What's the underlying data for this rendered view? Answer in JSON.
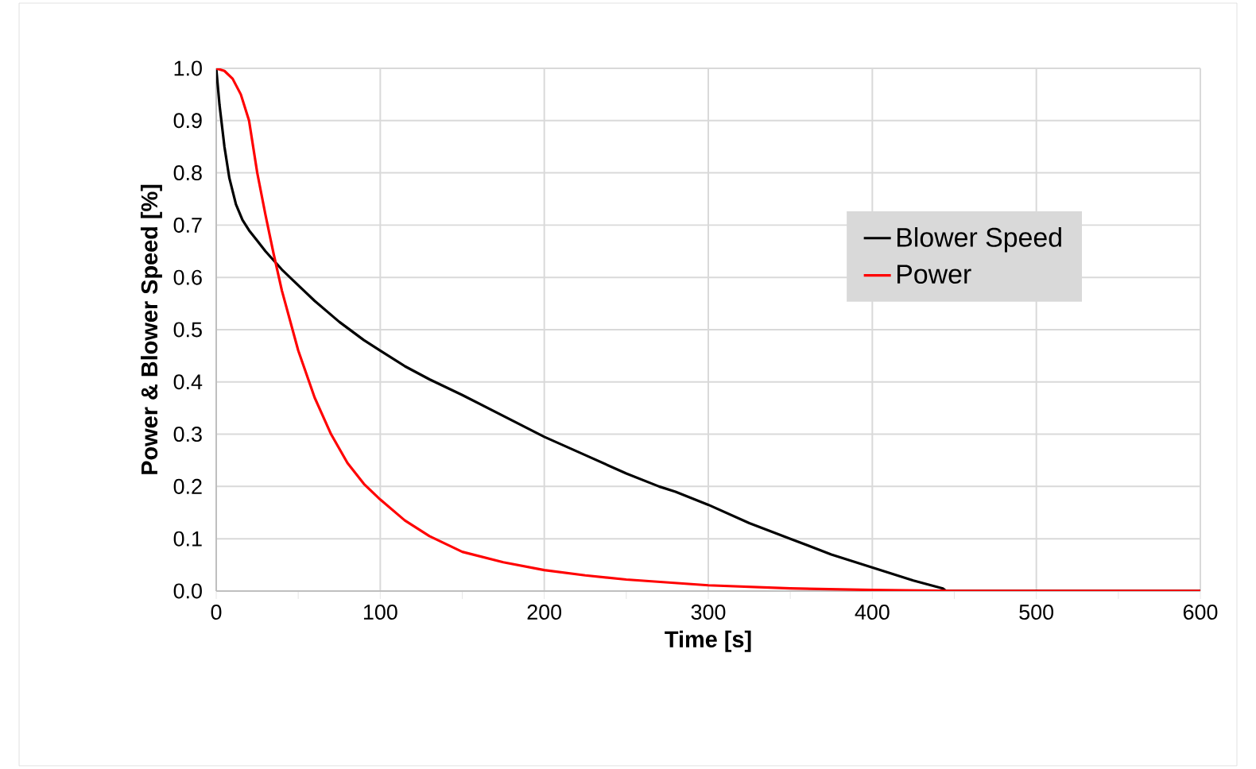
{
  "chart_data": {
    "type": "line",
    "xlabel": "Time [s]",
    "ylabel": "Power & Blower Speed [%]",
    "xlim": [
      0,
      600
    ],
    "xticks": [
      0,
      100,
      200,
      300,
      400,
      500,
      600
    ],
    "ylim": [
      0,
      1
    ],
    "yticks": [
      {
        "value": 0,
        "label": "0.0"
      },
      {
        "value": 0.1,
        "label": "0.1"
      },
      {
        "value": 0.2,
        "label": "0.2"
      },
      {
        "value": 0.3,
        "label": "0.3"
      },
      {
        "value": 0.4,
        "label": "0.4"
      },
      {
        "value": 0.5,
        "label": "0.5"
      },
      {
        "value": 0.6,
        "label": "0.6"
      },
      {
        "value": 0.7,
        "label": "0.7"
      },
      {
        "value": 0.8,
        "label": "0.8"
      },
      {
        "value": 0.9,
        "label": "0.9"
      },
      {
        "value": 1,
        "label": "1.0"
      }
    ],
    "grid": true,
    "legend": "right",
    "marker": "none",
    "line_style": "solid",
    "series": [
      {
        "name": "Blower Speed",
        "color": "#000000",
        "x": [
          0,
          2,
          5,
          8,
          12,
          16,
          20,
          25,
          30,
          40,
          50,
          60,
          75,
          90,
          100,
          115,
          130,
          150,
          175,
          200,
          225,
          250,
          270,
          280,
          300,
          325,
          350,
          375,
          400,
          425,
          443,
          445,
          500,
          600
        ],
        "values": [
          1.0,
          0.93,
          0.85,
          0.79,
          0.74,
          0.71,
          0.69,
          0.67,
          0.65,
          0.615,
          0.585,
          0.555,
          0.515,
          0.48,
          0.46,
          0.43,
          0.405,
          0.375,
          0.335,
          0.295,
          0.26,
          0.225,
          0.2,
          0.19,
          0.165,
          0.13,
          0.1,
          0.07,
          0.045,
          0.02,
          0.005,
          0,
          0,
          0
        ]
      },
      {
        "name": "Power",
        "color": "#ff0000",
        "x": [
          0,
          5,
          10,
          15,
          20,
          25,
          30,
          35,
          40,
          50,
          60,
          70,
          80,
          90,
          100,
          115,
          130,
          150,
          175,
          200,
          225,
          250,
          300,
          350,
          400,
          450,
          500,
          600
        ],
        "values": [
          1.0,
          0.995,
          0.98,
          0.95,
          0.9,
          0.8,
          0.72,
          0.645,
          0.575,
          0.46,
          0.37,
          0.3,
          0.245,
          0.205,
          0.175,
          0.135,
          0.105,
          0.075,
          0.055,
          0.04,
          0.03,
          0.022,
          0.011,
          0.005,
          0.002,
          0,
          0,
          0
        ]
      }
    ]
  }
}
